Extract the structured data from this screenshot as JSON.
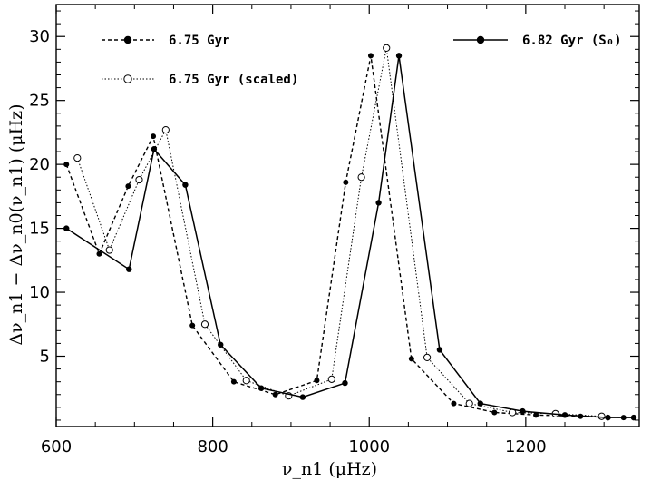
{
  "chart_data": {
    "type": "line",
    "title": "",
    "xlabel": "ν_n1  (μHz)",
    "ylabel": "Δν_n1 − Δν_n0(ν_n1)  (μHz)",
    "xlim": [
      600,
      1345
    ],
    "ylim": [
      -0.5,
      32.5
    ],
    "xticks": [
      600,
      800,
      1000,
      1200
    ],
    "yticks": [
      5,
      10,
      15,
      20,
      25,
      30
    ],
    "grid": false,
    "legend_position": "top",
    "series": [
      {
        "name": "6.75 Gyr",
        "line_style": "dashed",
        "marker": "filled-circle-small",
        "color": "#000000",
        "x": [
          613,
          655,
          692,
          724,
          774,
          827,
          880,
          933,
          970,
          1002,
          1054,
          1108,
          1160,
          1213,
          1270,
          1325
        ],
        "y": [
          20.0,
          13.0,
          18.3,
          22.2,
          7.4,
          3.0,
          2.0,
          3.1,
          18.6,
          28.5,
          4.8,
          1.3,
          0.6,
          0.4,
          0.3,
          0.2
        ]
      },
      {
        "name": "6.75 Gyr (scaled)",
        "line_style": "dotted",
        "marker": "open-circle",
        "color": "#000000",
        "x": [
          627,
          668,
          706,
          740,
          790,
          843,
          897,
          952,
          990,
          1022,
          1074,
          1128,
          1183,
          1238,
          1297
        ],
        "y": [
          20.5,
          13.3,
          18.8,
          22.7,
          7.5,
          3.1,
          1.9,
          3.2,
          19.0,
          29.1,
          4.9,
          1.3,
          0.6,
          0.5,
          0.3
        ]
      },
      {
        "name": "6.82 Gyr (S₀)",
        "line_style": "solid",
        "marker": "filled-circle",
        "color": "#000000",
        "x": [
          613,
          693,
          725,
          765,
          810,
          862,
          915,
          969,
          1012,
          1038,
          1090,
          1142,
          1196,
          1250,
          1305,
          1338
        ],
        "y": [
          15.0,
          11.8,
          21.2,
          18.4,
          5.9,
          2.5,
          1.8,
          2.9,
          17.0,
          28.5,
          5.5,
          1.3,
          0.7,
          0.4,
          0.2,
          0.2
        ]
      }
    ]
  }
}
